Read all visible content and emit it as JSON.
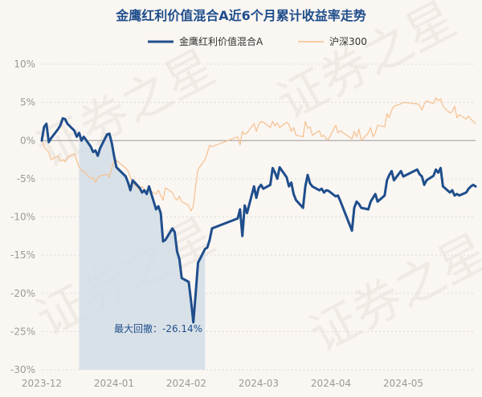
{
  "chart_data": {
    "type": "line",
    "title": "金鹰红利价值混合A近6个月累计收益率走势",
    "watermark": "证券之星",
    "legend_position": "top-center",
    "grid": true,
    "x_ticks": [
      "2023-12",
      "2024-01",
      "2024-02",
      "2024-03",
      "2024-04",
      "2024-05"
    ],
    "ylim": [
      -30,
      10
    ],
    "y_ticks": [
      10,
      5,
      0,
      -5,
      -10,
      -15,
      -20,
      -25,
      -30
    ],
    "y_tick_labels": [
      "10%",
      "5%",
      "0%",
      "-5%",
      "-10%",
      "-15%",
      "-20%",
      "-25%",
      "-30%"
    ],
    "colors": {
      "fund": "#1f4e8c",
      "index": "#f5c08f",
      "drawdown_area": "#d2dde6",
      "grid": "#dcdcdc",
      "zero_line": "#999999"
    },
    "x_domain": [
      "2023-11-27",
      "2024-05-31"
    ],
    "series": [
      {
        "name": "金鹰红利价值混合A",
        "style": "bold",
        "x": [
          "2023-11-27",
          "2023-11-28",
          "2023-11-29",
          "2023-11-30",
          "2023-12-01",
          "2023-12-04",
          "2023-12-05",
          "2023-12-06",
          "2023-12-07",
          "2023-12-08",
          "2023-12-11",
          "2023-12-12",
          "2023-12-13",
          "2023-12-14",
          "2023-12-15",
          "2023-12-18",
          "2023-12-19",
          "2023-12-20",
          "2023-12-21",
          "2023-12-22",
          "2023-12-25",
          "2023-12-26",
          "2023-12-27",
          "2023-12-28",
          "2023-12-29",
          "2024-01-02",
          "2024-01-03",
          "2024-01-04",
          "2024-01-05",
          "2024-01-08",
          "2024-01-09",
          "2024-01-10",
          "2024-01-11",
          "2024-01-12",
          "2024-01-15",
          "2024-01-16",
          "2024-01-17",
          "2024-01-18",
          "2024-01-19",
          "2024-01-22",
          "2024-01-23",
          "2024-01-24",
          "2024-01-25",
          "2024-01-26",
          "2024-01-29",
          "2024-01-30",
          "2024-01-31",
          "2024-02-01",
          "2024-02-02",
          "2024-02-05",
          "2024-02-06",
          "2024-02-07",
          "2024-02-08",
          "2024-02-19",
          "2024-02-20",
          "2024-02-21",
          "2024-02-22",
          "2024-02-23",
          "2024-02-26",
          "2024-02-27",
          "2024-02-28",
          "2024-02-29",
          "2024-03-01",
          "2024-03-04",
          "2024-03-05",
          "2024-03-06",
          "2024-03-07",
          "2024-03-08",
          "2024-03-11",
          "2024-03-12",
          "2024-03-13",
          "2024-03-14",
          "2024-03-15",
          "2024-03-18",
          "2024-03-19",
          "2024-03-20",
          "2024-03-21",
          "2024-03-22",
          "2024-03-25",
          "2024-03-26",
          "2024-03-27",
          "2024-03-28",
          "2024-03-29",
          "2024-04-01",
          "2024-04-02",
          "2024-04-03",
          "2024-04-08",
          "2024-04-09",
          "2024-04-10",
          "2024-04-11",
          "2024-04-12",
          "2024-04-15",
          "2024-04-16",
          "2024-04-17",
          "2024-04-18",
          "2024-04-19",
          "2024-04-22",
          "2024-04-23",
          "2024-04-24",
          "2024-04-25",
          "2024-04-26",
          "2024-04-29",
          "2024-04-30",
          "2024-05-06",
          "2024-05-07",
          "2024-05-08",
          "2024-05-09",
          "2024-05-10",
          "2024-05-13",
          "2024-05-14",
          "2024-05-15",
          "2024-05-16",
          "2024-05-17",
          "2024-05-20",
          "2024-05-21",
          "2024-05-22",
          "2024-05-23",
          "2024-05-24",
          "2024-05-27",
          "2024-05-28",
          "2024-05-29",
          "2024-05-30",
          "2024-05-31"
        ],
        "values": [
          0.0,
          1.8,
          2.2,
          -0.2,
          0.3,
          1.5,
          2.0,
          2.9,
          2.8,
          2.2,
          1.3,
          0.5,
          1.0,
          0.0,
          0.5,
          -0.8,
          -1.5,
          -1.3,
          -2.0,
          -1.0,
          0.8,
          0.9,
          -0.3,
          -2.0,
          -3.5,
          -4.7,
          -5.5,
          -6.5,
          -5.2,
          -6.2,
          -6.8,
          -6.5,
          -7.0,
          -6.0,
          -9.0,
          -8.6,
          -9.5,
          -13.2,
          -13.0,
          -11.5,
          -12.0,
          -14.5,
          -15.5,
          -18.0,
          -18.5,
          -21.0,
          -23.8,
          -20.0,
          -16.0,
          -14.2,
          -14.0,
          -13.0,
          -11.5,
          -10.2,
          -9.0,
          -12.5,
          -8.5,
          -9.5,
          -6.0,
          -7.5,
          -6.2,
          -5.8,
          -6.3,
          -5.8,
          -3.6,
          -4.2,
          -5.0,
          -3.5,
          -4.8,
          -6.0,
          -5.5,
          -7.0,
          -7.8,
          -8.8,
          -6.0,
          -4.5,
          -5.6,
          -6.0,
          -6.5,
          -6.3,
          -6.8,
          -6.5,
          -6.6,
          -7.3,
          -7.2,
          -7.9,
          -11.8,
          -8.8,
          -8.0,
          -8.3,
          -8.8,
          -9.0,
          -8.0,
          -7.5,
          -7.0,
          -8.0,
          -7.2,
          -5.2,
          -4.5,
          -4.0,
          -5.2,
          -4.0,
          -4.7,
          -3.8,
          -4.4,
          -4.7,
          -5.8,
          -5.2,
          -4.6,
          -3.8,
          -4.2,
          -3.6,
          -6.0,
          -6.8,
          -6.5,
          -7.2,
          -7.0,
          -7.2,
          -6.8,
          -6.3,
          -6.0,
          -5.8,
          -6.0
        ]
      },
      {
        "name": "沪深300",
        "style": "thin",
        "x": [
          "2023-11-27",
          "2023-11-28",
          "2023-11-29",
          "2023-11-30",
          "2023-12-01",
          "2023-12-04",
          "2023-12-05",
          "2023-12-06",
          "2023-12-07",
          "2023-12-08",
          "2023-12-11",
          "2023-12-12",
          "2023-12-13",
          "2023-12-14",
          "2023-12-15",
          "2023-12-18",
          "2023-12-19",
          "2023-12-20",
          "2023-12-21",
          "2023-12-22",
          "2023-12-25",
          "2023-12-26",
          "2023-12-27",
          "2023-12-28",
          "2023-12-29",
          "2024-01-02",
          "2024-01-03",
          "2024-01-04",
          "2024-01-05",
          "2024-01-08",
          "2024-01-09",
          "2024-01-10",
          "2024-01-11",
          "2024-01-12",
          "2024-01-15",
          "2024-01-16",
          "2024-01-17",
          "2024-01-18",
          "2024-01-19",
          "2024-01-22",
          "2024-01-23",
          "2024-01-24",
          "2024-01-25",
          "2024-01-26",
          "2024-01-29",
          "2024-01-30",
          "2024-01-31",
          "2024-02-01",
          "2024-02-02",
          "2024-02-05",
          "2024-02-06",
          "2024-02-07",
          "2024-02-08",
          "2024-02-19",
          "2024-02-20",
          "2024-02-21",
          "2024-02-22",
          "2024-02-23",
          "2024-02-26",
          "2024-02-27",
          "2024-02-28",
          "2024-02-29",
          "2024-03-01",
          "2024-03-04",
          "2024-03-05",
          "2024-03-06",
          "2024-03-07",
          "2024-03-08",
          "2024-03-11",
          "2024-03-12",
          "2024-03-13",
          "2024-03-14",
          "2024-03-15",
          "2024-03-18",
          "2024-03-19",
          "2024-03-20",
          "2024-03-21",
          "2024-03-22",
          "2024-03-25",
          "2024-03-26",
          "2024-03-27",
          "2024-03-28",
          "2024-03-29",
          "2024-04-01",
          "2024-04-02",
          "2024-04-03",
          "2024-04-08",
          "2024-04-09",
          "2024-04-10",
          "2024-04-11",
          "2024-04-12",
          "2024-04-15",
          "2024-04-16",
          "2024-04-17",
          "2024-04-18",
          "2024-04-19",
          "2024-04-22",
          "2024-04-23",
          "2024-04-24",
          "2024-04-25",
          "2024-04-26",
          "2024-04-29",
          "2024-04-30",
          "2024-05-06",
          "2024-05-07",
          "2024-05-08",
          "2024-05-09",
          "2024-05-10",
          "2024-05-13",
          "2024-05-14",
          "2024-05-15",
          "2024-05-16",
          "2024-05-17",
          "2024-05-20",
          "2024-05-21",
          "2024-05-22",
          "2024-05-23",
          "2024-05-24",
          "2024-05-27",
          "2024-05-28",
          "2024-05-29",
          "2024-05-30",
          "2024-05-31"
        ],
        "values": [
          0.0,
          -0.8,
          -1.2,
          -1.5,
          -2.5,
          -2.0,
          -2.7,
          -2.5,
          -2.8,
          -2.2,
          -1.7,
          -2.6,
          -3.5,
          -3.9,
          -4.0,
          -5.0,
          -4.8,
          -5.5,
          -4.9,
          -4.6,
          -4.4,
          -4.8,
          -3.6,
          -2.7,
          -2.6,
          -3.6,
          -4.0,
          -4.8,
          -5.5,
          -6.5,
          -6.0,
          -6.4,
          -6.8,
          -6.5,
          -7.0,
          -6.5,
          -7.2,
          -7.8,
          -6.2,
          -6.8,
          -7.5,
          -7.8,
          -7.3,
          -8.0,
          -8.5,
          -9.2,
          -8.6,
          -5.8,
          -3.8,
          -2.5,
          -1.6,
          -0.6,
          -0.8,
          0.5,
          -0.6,
          1.2,
          0.8,
          1.0,
          2.2,
          1.2,
          2.1,
          2.5,
          2.4,
          1.7,
          2.5,
          1.9,
          2.3,
          1.7,
          2.4,
          2.1,
          1.2,
          1.7,
          0.7,
          0.5,
          2.5,
          1.6,
          1.8,
          0.7,
          1.3,
          0.5,
          0.7,
          0.2,
          0.2,
          2.0,
          1.0,
          1.3,
          0.2,
          1.2,
          0.5,
          1.5,
          0.0,
          1.0,
          1.7,
          0.5,
          1.0,
          2.0,
          1.8,
          3.5,
          3.0,
          4.0,
          4.5,
          4.8,
          5.0,
          4.8,
          4.6,
          4.0,
          4.8,
          5.2,
          4.8,
          5.6,
          5.2,
          5.5,
          4.5,
          3.6,
          3.8,
          4.5,
          3.0,
          3.4,
          2.8,
          3.2,
          2.8,
          2.5,
          2.2
        ]
      }
    ],
    "annotations": [
      {
        "text": "最大回撤：-26.14%",
        "shaded_from": "2023-12-13",
        "shaded_to": "2024-02-05"
      }
    ]
  }
}
